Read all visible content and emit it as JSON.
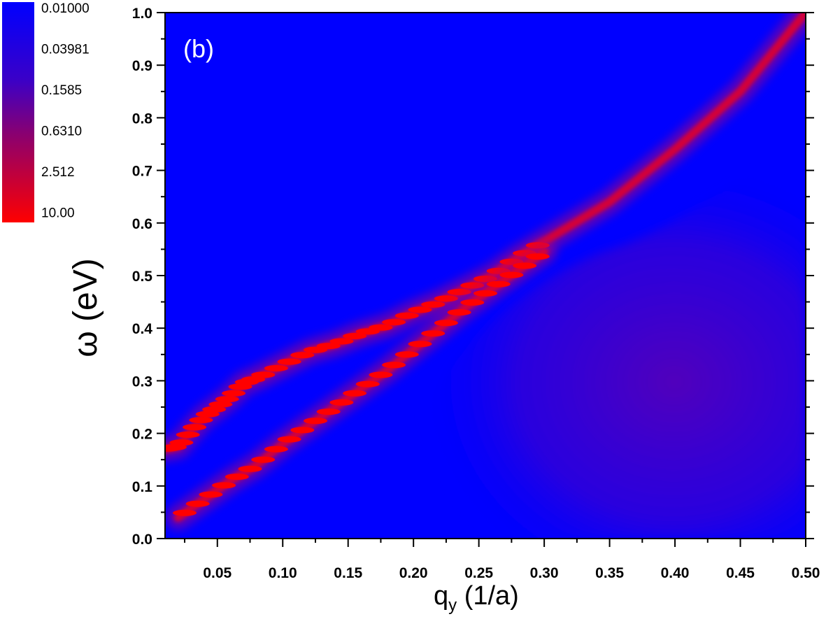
{
  "chart_data": {
    "type": "heatmap",
    "panel_label": "(b)",
    "xlabel_main": "q",
    "xlabel_sub": "y",
    "xlabel_unit": " (1/a)",
    "ylabel": "ω (eV)",
    "xlim": [
      0.01,
      0.5
    ],
    "ylim": [
      0.0,
      1.0
    ],
    "x_ticks": [
      "0.05",
      "0.10",
      "0.15",
      "0.20",
      "0.25",
      "0.30",
      "0.35",
      "0.40",
      "0.45",
      "0.50"
    ],
    "y_ticks": [
      "0.0",
      "0.1",
      "0.2",
      "0.3",
      "0.4",
      "0.5",
      "0.6",
      "0.7",
      "0.8",
      "0.9",
      "1.0"
    ],
    "colorbar": {
      "scale": "log",
      "labels": [
        "0.01000",
        "0.03981",
        "0.1585",
        "0.6310",
        "2.512",
        "10.00"
      ],
      "low_color": "#0000ff",
      "high_color": "#ff0000"
    },
    "colors": {
      "background": "#0000ff",
      "mid": "#5a00b4",
      "peak": "#ff0000"
    },
    "upper_branch": [
      [
        0.01,
        0.17
      ],
      [
        0.02,
        0.175
      ],
      [
        0.03,
        0.205
      ],
      [
        0.04,
        0.232
      ],
      [
        0.05,
        0.25
      ],
      [
        0.06,
        0.27
      ],
      [
        0.07,
        0.295
      ],
      [
        0.08,
        0.305
      ],
      [
        0.1,
        0.33
      ],
      [
        0.12,
        0.355
      ],
      [
        0.14,
        0.37
      ],
      [
        0.16,
        0.39
      ],
      [
        0.18,
        0.405
      ],
      [
        0.2,
        0.43
      ],
      [
        0.22,
        0.45
      ],
      [
        0.24,
        0.475
      ],
      [
        0.26,
        0.5
      ],
      [
        0.28,
        0.535
      ],
      [
        0.3,
        0.565
      ],
      [
        0.35,
        0.64
      ],
      [
        0.4,
        0.74
      ],
      [
        0.45,
        0.85
      ],
      [
        0.5,
        1.0
      ]
    ],
    "lower_branch": [
      [
        0.02,
        0.04
      ],
      [
        0.04,
        0.075
      ],
      [
        0.06,
        0.11
      ],
      [
        0.08,
        0.14
      ],
      [
        0.1,
        0.18
      ],
      [
        0.12,
        0.215
      ],
      [
        0.14,
        0.25
      ],
      [
        0.16,
        0.285
      ],
      [
        0.18,
        0.32
      ],
      [
        0.2,
        0.36
      ],
      [
        0.22,
        0.4
      ],
      [
        0.24,
        0.44
      ],
      [
        0.26,
        0.475
      ],
      [
        0.28,
        0.51
      ],
      [
        0.3,
        0.545
      ]
    ]
  }
}
